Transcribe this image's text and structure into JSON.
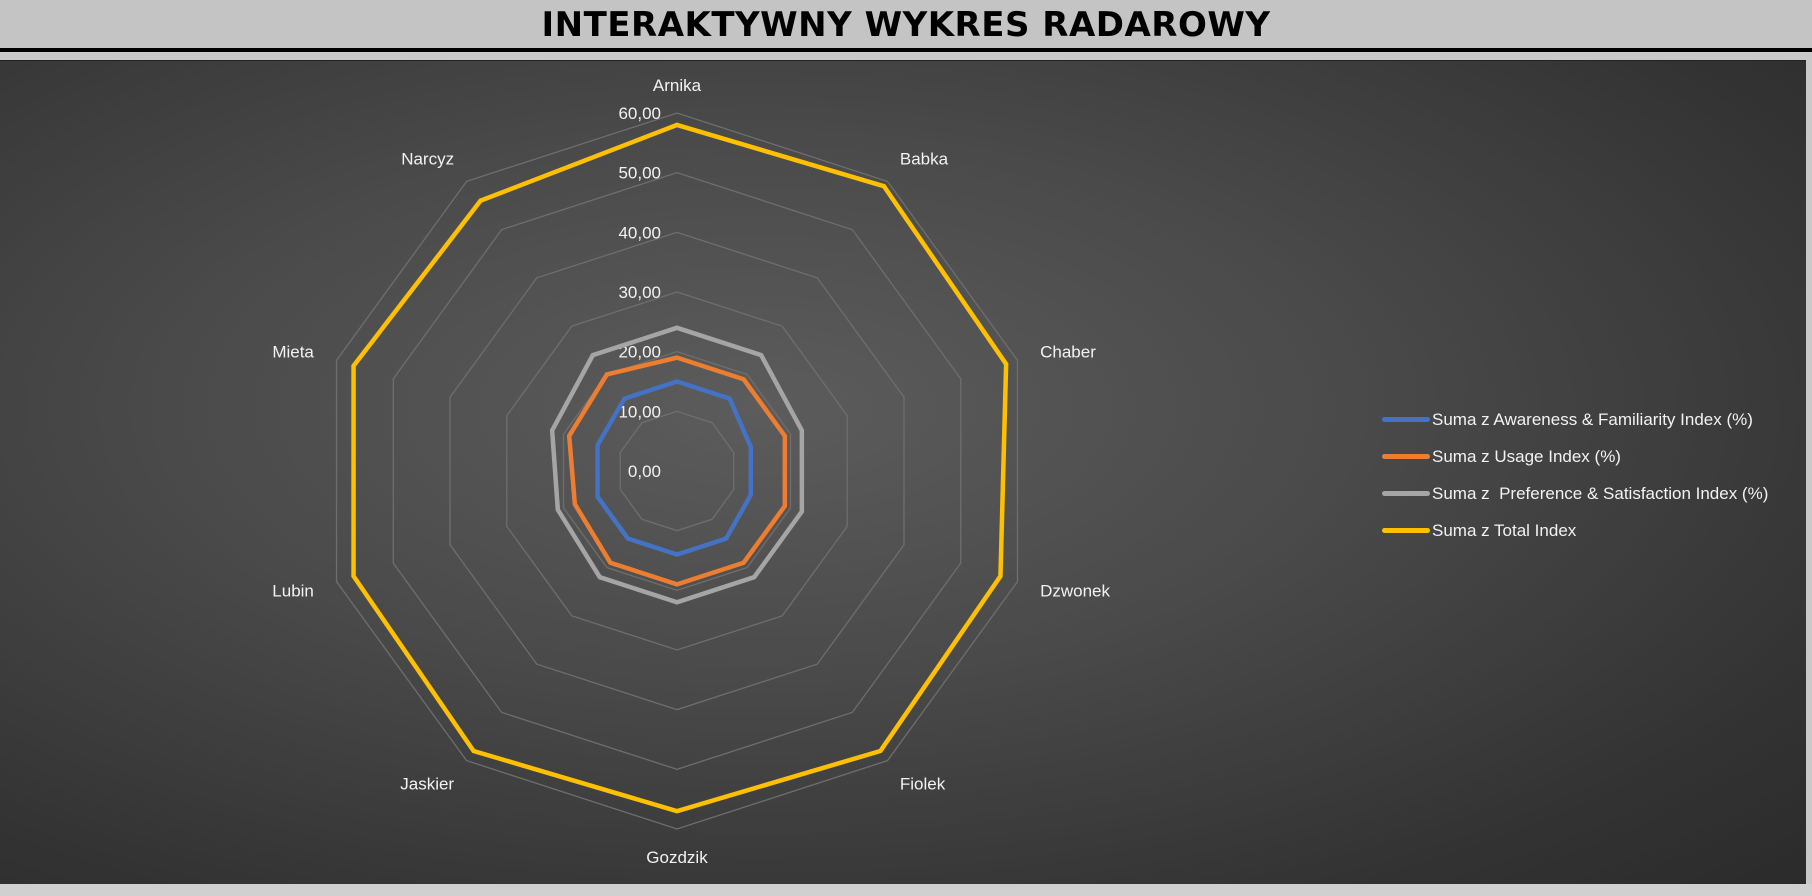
{
  "title": "INTERAKTYWNY WYKRES RADAROWY",
  "chart_data": {
    "type": "radar",
    "categories": [
      "Arnika",
      "Babka",
      "Chaber",
      "Dzwonek",
      "Fiolek",
      "Gozdzik",
      "Jaskier",
      "Lubin",
      "Mieta",
      "Narcyz"
    ],
    "axis_ticks": [
      "0,00",
      "10,00",
      "20,00",
      "30,00",
      "40,00",
      "50,00",
      "60,00"
    ],
    "rlim": [
      0,
      60
    ],
    "grid": true,
    "legend_position": "right",
    "series": [
      {
        "name": "Suma z Awareness & Familiarity Index (%)",
        "color": "#4472c4",
        "values": [
          15,
          15,
          13,
          13,
          14,
          14,
          14,
          14,
          14,
          15
        ]
      },
      {
        "name": "Suma z Usage Index (%)",
        "color": "#ed7d31",
        "values": [
          19,
          19,
          19,
          19,
          19,
          19,
          19,
          18,
          19,
          20
        ]
      },
      {
        "name": "Suma z  Preference & Satisfaction Index (%)",
        "color": "#a5a5a5",
        "values": [
          24,
          24,
          22,
          22,
          22,
          22,
          22,
          21,
          22,
          24
        ]
      },
      {
        "name": "Suma z Total Index",
        "color": "#ffc000",
        "values": [
          58,
          59,
          58,
          57,
          58,
          57,
          58,
          57,
          57,
          56
        ]
      }
    ]
  }
}
